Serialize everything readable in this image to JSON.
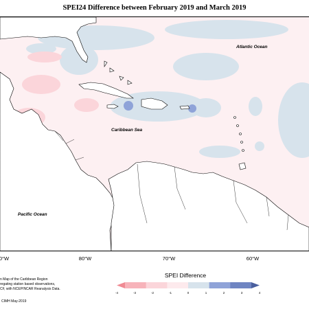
{
  "title": "SPEI24 Difference between February 2019 and March 2019",
  "ocean_labels": {
    "atlantic": "Atlantic Ocean",
    "caribbean": "Caribbean Sea",
    "pacific": "Pacific Ocean"
  },
  "longitude_ticks": [
    "0°W",
    "80°W",
    "70°W",
    "60°W"
  ],
  "credit_lines": [
    "n Map of the Caribbean Region",
    "regating station based observations,",
    "CF, with NCEP/NCAR Reanalysis Data."
  ],
  "credit_footer": "CIMH May-2019",
  "legend": {
    "title": "SPEI Difference",
    "labels": [
      "-4",
      "-3",
      "-2",
      "-1",
      "0",
      "1",
      "2",
      "3",
      "4"
    ],
    "colors": [
      "#f08a93",
      "#f7b3ba",
      "#fbd5da",
      "#fdeaed",
      "#d7e3ec",
      "#8fa3d8",
      "#6f85c2",
      "#4a5f9e"
    ]
  },
  "colors": {
    "land": "#ffffff",
    "ocean_base": "#fdf0f2",
    "light_blue": "#d7e3ec",
    "light_pink": "#fbd5da",
    "medium_blue": "#8fa3d8",
    "pink": "#f7b3ba"
  }
}
